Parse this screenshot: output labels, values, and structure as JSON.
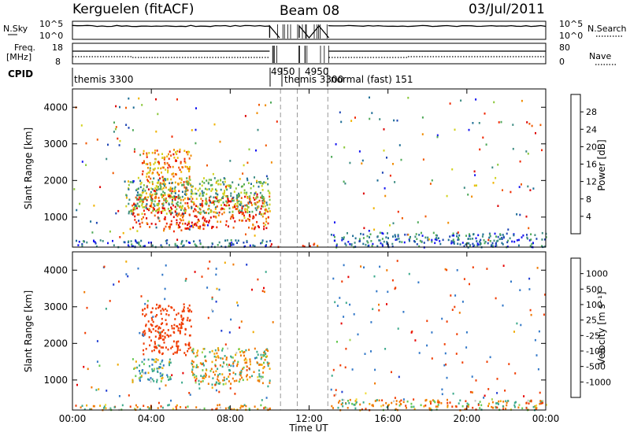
{
  "header": {
    "radar": "Kerguelen (fitACF)",
    "beam": "Beam 08",
    "date": "03/Jul/2011"
  },
  "panels": {
    "nsky_label": "N.Sky",
    "nsky_ticks": [
      "10^5",
      "10^0"
    ],
    "nsearch_label": "N.Search",
    "nsearch_ticks": [
      "10^5",
      "10^0"
    ],
    "freq_label_1": "Freq.",
    "freq_label_2": "[MHz]",
    "freq_ticks": [
      "18",
      "8"
    ],
    "nave_label": "Nave",
    "nave_ticks": [
      "80",
      "0"
    ],
    "cpid_label": "CPID",
    "cpid_modes": [
      "themis 3300",
      "4950",
      "themis 3300",
      "4950",
      "normal (fast) 151"
    ]
  },
  "axes": {
    "ylabel": "Slant Range [km]",
    "xlabel": "Time UT",
    "yticks": [
      "1000",
      "2000",
      "3000",
      "4000"
    ],
    "xticks": [
      "00:00",
      "04:00",
      "08:00",
      "12:00",
      "16:00",
      "20:00",
      "00:00"
    ]
  },
  "colorbars": {
    "power_label": "Power [dB]",
    "power_ticks": [
      "4",
      "8",
      "12",
      "16",
      "20",
      "24",
      "28"
    ],
    "power_colors": [
      "#1414f0",
      "#1e46b4",
      "#1e6e96",
      "#3c8c82",
      "#50aa5a",
      "#8cc83c",
      "#d2d21e",
      "#f0b400",
      "#f08c00",
      "#f05a00",
      "#f02800",
      "#dc0000"
    ],
    "velocity_label": "Velocity [m s⁻¹]",
    "velocity_ticks": [
      "1000",
      "500",
      "100",
      "25",
      "-25",
      "-100",
      "-500",
      "-1000"
    ],
    "velocity_colors": [
      "#1e3cd2",
      "#3278c8",
      "#3caa8c",
      "#64c850",
      "#a0d250",
      "#c8c8c8",
      "#c8c8c8",
      "#f0dc3c",
      "#f0aa00",
      "#f07800",
      "#f03c00",
      "#e60000"
    ]
  },
  "chart_data": [
    {
      "type": "heatmap",
      "name": "Power panel",
      "xlabel": "Time UT",
      "ylabel": "Slant Range [km]",
      "xlim": [
        "00:00",
        "24:00"
      ],
      "ylim": [
        180,
        4500
      ],
      "colorbar": {
        "label": "Power [dB]",
        "range": [
          0,
          30
        ]
      },
      "features": [
        {
          "time_start": "03:30",
          "time_end": "06:00",
          "range_start": 1500,
          "range_end": 2900,
          "power_db": 22
        },
        {
          "time_start": "03:00",
          "time_end": "10:00",
          "range_start": 700,
          "range_end": 1600,
          "power_db": 26
        },
        {
          "time_start": "02:40",
          "time_end": "10:00",
          "range_start": 1100,
          "range_end": 2100,
          "power_db": 12
        },
        {
          "time_start": "00:00",
          "time_end": "10:00",
          "range_start": 200,
          "range_end": 400,
          "power_db": 6
        },
        {
          "time_start": "10:00",
          "time_end": "10:30",
          "range_start": 200,
          "range_end": 300,
          "power_db": 26
        },
        {
          "time_start": "11:30",
          "time_end": "12:30",
          "range_start": 200,
          "range_end": 300,
          "power_db": 26
        },
        {
          "time_start": "13:00",
          "time_end": "24:00",
          "range_start": 200,
          "range_end": 600,
          "power_db": 6
        }
      ]
    },
    {
      "type": "heatmap",
      "name": "Velocity panel",
      "xlabel": "Time UT",
      "ylabel": "Slant Range [km]",
      "xlim": [
        "00:00",
        "24:00"
      ],
      "ylim": [
        180,
        4500
      ],
      "colorbar": {
        "label": "Velocity [m s⁻¹]",
        "range": [
          -1000,
          1000
        ]
      },
      "features": [
        {
          "time_start": "03:30",
          "time_end": "06:00",
          "range_start": 1700,
          "range_end": 3100,
          "velocity": -300
        },
        {
          "time_start": "03:00",
          "time_end": "05:00",
          "range_start": 900,
          "range_end": 1600,
          "velocity": 100
        },
        {
          "time_start": "06:00",
          "time_end": "10:00",
          "range_start": 900,
          "range_end": 1900,
          "velocity": 0
        },
        {
          "time_start": "00:00",
          "time_end": "10:00",
          "range_start": 200,
          "range_end": 350,
          "velocity": -40
        },
        {
          "time_start": "13:00",
          "time_end": "24:00",
          "range_start": 200,
          "range_end": 500,
          "velocity": -40
        }
      ]
    }
  ]
}
